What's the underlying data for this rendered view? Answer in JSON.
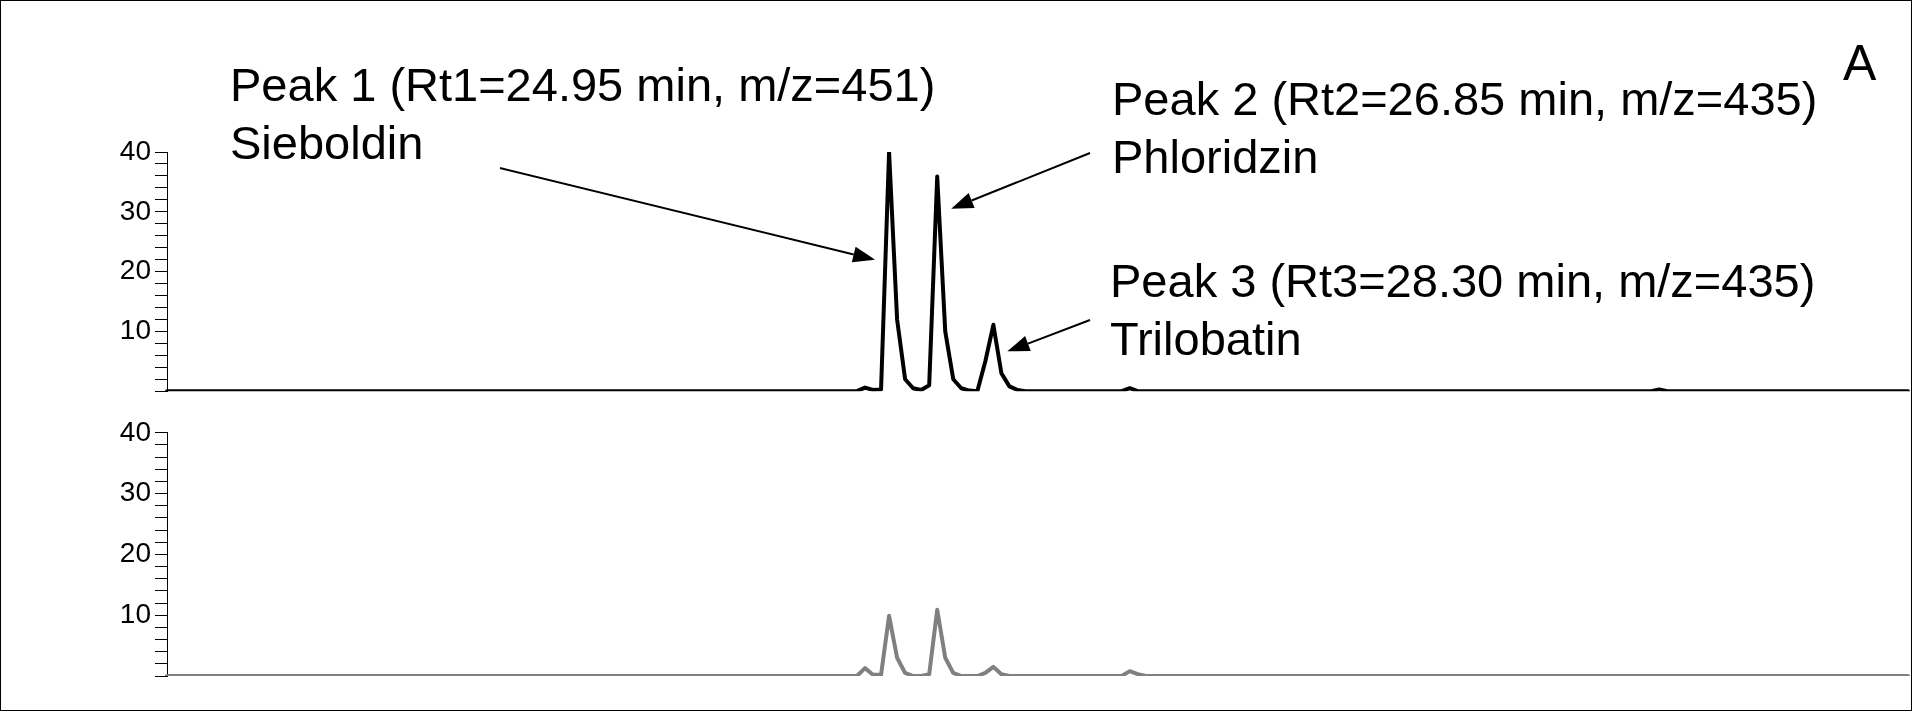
{
  "chart_data": [
    {
      "type": "line",
      "annotations": [
        "Peak 1 (Rt1=24.95 min, m/z=451)\nSieboldin",
        "Peak 2 (Rt2=26.85 min, m/z=435)\nPhloridzin",
        "Peak 3 (Rt3=28.30 min, m/z=435)\nTrilobatin",
        "A"
      ],
      "categories": [
        null,
        null,
        null,
        null,
        null,
        null,
        null,
        null,
        null,
        null,
        null,
        null,
        null,
        null,
        null,
        null,
        null,
        null,
        null,
        null,
        null,
        null,
        null,
        null,
        null,
        null,
        null,
        null,
        null,
        null,
        null,
        null,
        null,
        null,
        null,
        null,
        null,
        null,
        null,
        null,
        null,
        null,
        null,
        null,
        null,
        null,
        null,
        null,
        null,
        null,
        null,
        null,
        null,
        null,
        null,
        null,
        null,
        null,
        null,
        null,
        null,
        null,
        null,
        null,
        null,
        null,
        null,
        null,
        null,
        null,
        null,
        null,
        null,
        null,
        null,
        null,
        null,
        null,
        null,
        null,
        null,
        null,
        null,
        null,
        null,
        null,
        null,
        null,
        null,
        null,
        null,
        null,
        null,
        null,
        null,
        null,
        null,
        null,
        null,
        null,
        null,
        null,
        null,
        null,
        null,
        null,
        null,
        null,
        null,
        null,
        null,
        null,
        null,
        null,
        null,
        null,
        null,
        null,
        null,
        null,
        null,
        null,
        null,
        null,
        null,
        null,
        null,
        null,
        null,
        null,
        null,
        null,
        null,
        null,
        null,
        null,
        null,
        null,
        null,
        null,
        null,
        null,
        null,
        null,
        null,
        null,
        null,
        null,
        null,
        null,
        null,
        null,
        null,
        null,
        null,
        null,
        null,
        null,
        null,
        null,
        null,
        null,
        null,
        null,
        null,
        null,
        null,
        null,
        null,
        null,
        null,
        null,
        null,
        null,
        null,
        null,
        null,
        null,
        null,
        null,
        null,
        null,
        null,
        null,
        null,
        null,
        null,
        null,
        null,
        null,
        null,
        null,
        null,
        null,
        null,
        null,
        null,
        null,
        null,
        null,
        null,
        null,
        null,
        null,
        null,
        null,
        null,
        null,
        null,
        null,
        null,
        null,
        null,
        null,
        null,
        null,
        null,
        null
      ],
      "series": [
        {
          "color": "#000000",
          "values": [
            0,
            0,
            0,
            0,
            0,
            0,
            0,
            0,
            0,
            0,
            0,
            0,
            0,
            0,
            0,
            0,
            0,
            0,
            0,
            0,
            0,
            0,
            0,
            0,
            0,
            0,
            0,
            0,
            0,
            0,
            0,
            0,
            0,
            0,
            0,
            0,
            0,
            0,
            0,
            0,
            0,
            0,
            0,
            0,
            0,
            0,
            0,
            0,
            0,
            0,
            0,
            0,
            0,
            0,
            0,
            0,
            0,
            0,
            0,
            0,
            0,
            0,
            0,
            0,
            0,
            0,
            0,
            0,
            0,
            0,
            0,
            0,
            0,
            0,
            0,
            0,
            0,
            0,
            0,
            0,
            0,
            0,
            0,
            0,
            0,
            0,
            0,
            0.6,
            0.2,
            0.3,
            40,
            12,
            2,
            0.5,
            0.2,
            1,
            35.9,
            10,
            2,
            0.5,
            0.1,
            0,
            5,
            11.1,
            3,
            0.8,
            0.2,
            0,
            0,
            0,
            0,
            0,
            0,
            0,
            0,
            0,
            0,
            0,
            0,
            0,
            0.5,
            0,
            0,
            0,
            0,
            0,
            0,
            0,
            0,
            0,
            0,
            0,
            0,
            0,
            0,
            0,
            0,
            0,
            0,
            0,
            0,
            0,
            0,
            0,
            0,
            0,
            0,
            0,
            0,
            0,
            0,
            0,
            0,
            0,
            0,
            0,
            0,
            0,
            0,
            0,
            0,
            0,
            0,
            0,
            0,
            0,
            0,
            0,
            0,
            0,
            0,
            0,
            0,
            0,
            0,
            0,
            0,
            0,
            0,
            0,
            0,
            0,
            0,
            0,
            0,
            0,
            0.3,
            0,
            0,
            0,
            0,
            0,
            0,
            0,
            0,
            0,
            0,
            0,
            0,
            0,
            0,
            0,
            0,
            0,
            0,
            0,
            0,
            0,
            0,
            0,
            0,
            0,
            0,
            0,
            0,
            0,
            0,
            0
          ]
        }
      ],
      "ylim": [
        0,
        40
      ],
      "yticks": [
        {
          "value": 0,
          "label": null
        },
        {
          "value": 2,
          "label": null
        },
        {
          "value": 4,
          "label": null
        },
        {
          "value": 6,
          "label": null
        },
        {
          "value": 8,
          "label": null
        },
        10,
        {
          "value": 12,
          "label": null
        },
        {
          "value": 14,
          "label": null
        },
        {
          "value": 16,
          "label": null
        },
        {
          "value": 18,
          "label": null
        },
        20,
        {
          "value": 22,
          "label": null
        },
        {
          "value": 24,
          "label": null
        },
        {
          "value": 26,
          "label": null
        },
        {
          "value": 28,
          "label": null
        },
        30,
        {
          "value": 32,
          "label": null
        },
        {
          "value": 34,
          "label": null
        },
        {
          "value": 36,
          "label": null
        },
        {
          "value": 38,
          "label": null
        },
        40
      ],
      "tick_labels": "y",
      "marker": "none",
      "line_style": "solid"
    },
    {
      "type": "line",
      "categories": [
        null,
        null,
        null,
        null,
        null,
        null,
        null,
        null,
        null,
        null,
        null,
        null,
        null,
        null,
        null,
        null,
        null,
        null,
        null,
        null,
        null,
        null,
        null,
        null,
        null,
        null,
        null,
        null,
        null,
        null,
        null,
        null,
        null,
        null,
        null,
        null,
        null,
        null,
        null,
        null,
        null,
        null,
        null,
        null,
        null,
        null,
        null,
        null,
        null,
        null,
        null,
        null,
        null,
        null,
        null,
        null,
        null,
        null,
        null,
        null,
        null,
        null,
        null,
        null,
        null,
        null,
        null,
        null,
        null,
        null,
        null,
        null,
        null,
        null,
        null,
        null,
        null,
        null,
        null,
        null,
        null,
        null,
        null,
        null,
        null,
        null,
        null,
        null,
        null,
        null,
        null,
        null,
        null,
        null,
        null,
        null,
        null,
        null,
        null,
        null,
        null,
        null,
        null,
        null,
        null,
        null,
        null,
        null,
        null,
        null,
        null,
        null,
        null,
        null,
        null,
        null,
        null,
        null,
        null,
        null,
        null,
        null,
        null,
        null,
        null,
        null,
        null,
        null,
        null,
        null,
        null,
        null,
        null,
        null,
        null,
        null,
        null,
        null,
        null,
        null,
        null,
        null,
        null,
        null,
        null,
        null,
        null,
        null,
        null,
        null,
        null,
        null,
        null,
        null,
        null,
        null,
        null,
        null,
        null,
        null,
        null,
        null,
        null,
        null,
        null,
        null,
        null,
        null,
        null,
        null,
        null,
        null,
        null,
        null,
        null,
        null,
        null,
        null,
        null,
        null,
        null,
        null,
        null,
        null,
        null,
        null,
        null,
        null,
        null,
        null,
        null,
        null,
        null,
        null,
        null,
        null,
        null,
        null,
        null,
        null,
        null,
        null,
        null,
        null,
        null,
        null,
        null,
        null,
        null,
        null,
        null,
        null,
        null,
        null,
        null,
        null,
        null,
        null
      ],
      "series": [
        {
          "color": "#808080",
          "values": [
            0,
            0,
            0,
            0,
            0,
            0,
            0,
            0,
            0,
            0,
            0,
            0,
            0,
            0,
            0,
            0,
            0,
            0,
            0,
            0,
            0,
            0,
            0,
            0,
            0,
            0,
            0,
            0,
            0,
            0,
            0,
            0,
            0,
            0,
            0,
            0,
            0,
            0,
            0,
            0,
            0,
            0,
            0,
            0,
            0,
            0,
            0,
            0,
            0,
            0,
            0,
            0,
            0,
            0,
            0,
            0,
            0,
            0,
            0,
            0,
            0,
            0,
            0,
            0,
            0,
            0,
            0,
            0,
            0,
            0,
            0,
            0,
            0,
            0,
            0,
            0,
            0,
            0,
            0,
            0,
            0,
            0,
            0,
            0,
            0,
            0,
            0,
            1.3,
            0.2,
            0.2,
            9.9,
            3,
            0.5,
            0,
            0,
            0.3,
            10.9,
            3,
            0.5,
            0,
            0,
            0,
            0.5,
            1.5,
            0.3,
            0,
            0,
            0,
            0,
            0,
            0,
            0,
            0,
            0,
            0,
            0,
            0,
            0,
            0,
            0,
            0.8,
            0.3,
            0,
            0,
            0,
            0,
            0,
            0,
            0,
            0,
            0,
            0,
            0,
            0,
            0,
            0,
            0,
            0,
            0,
            0,
            0,
            0,
            0,
            0,
            0,
            0,
            0,
            0,
            0,
            0,
            0,
            0,
            0,
            0,
            0,
            0,
            0,
            0,
            0,
            0,
            0,
            0,
            0,
            0,
            0,
            0,
            0,
            0,
            0,
            0,
            0,
            0,
            0,
            0,
            0,
            0,
            0,
            0,
            0,
            0,
            0,
            0,
            0,
            0,
            0,
            0,
            0,
            0,
            0,
            0,
            0,
            0,
            0,
            0,
            0,
            0,
            0,
            0,
            0,
            0,
            0,
            0,
            0,
            0,
            0,
            0,
            0,
            0,
            0,
            0,
            0,
            0,
            0,
            0,
            0,
            0,
            0,
            0
          ]
        }
      ],
      "ylim": [
        0,
        40
      ],
      "yticks": [
        {
          "value": 0,
          "label": null
        },
        {
          "value": 2,
          "label": null
        },
        {
          "value": 4,
          "label": null
        },
        {
          "value": 6,
          "label": null
        },
        {
          "value": 8,
          "label": null
        },
        10,
        {
          "value": 12,
          "label": null
        },
        {
          "value": 14,
          "label": null
        },
        {
          "value": 16,
          "label": null
        },
        {
          "value": 18,
          "label": null
        },
        20,
        {
          "value": 22,
          "label": null
        },
        {
          "value": 24,
          "label": null
        },
        {
          "value": 26,
          "label": null
        },
        {
          "value": 28,
          "label": null
        },
        30,
        {
          "value": 32,
          "label": null
        },
        {
          "value": 34,
          "label": null
        },
        {
          "value": 36,
          "label": null
        },
        {
          "value": 38,
          "label": null
        },
        40
      ],
      "tick_labels": "y",
      "marker": "none",
      "line_style": "solid"
    }
  ]
}
